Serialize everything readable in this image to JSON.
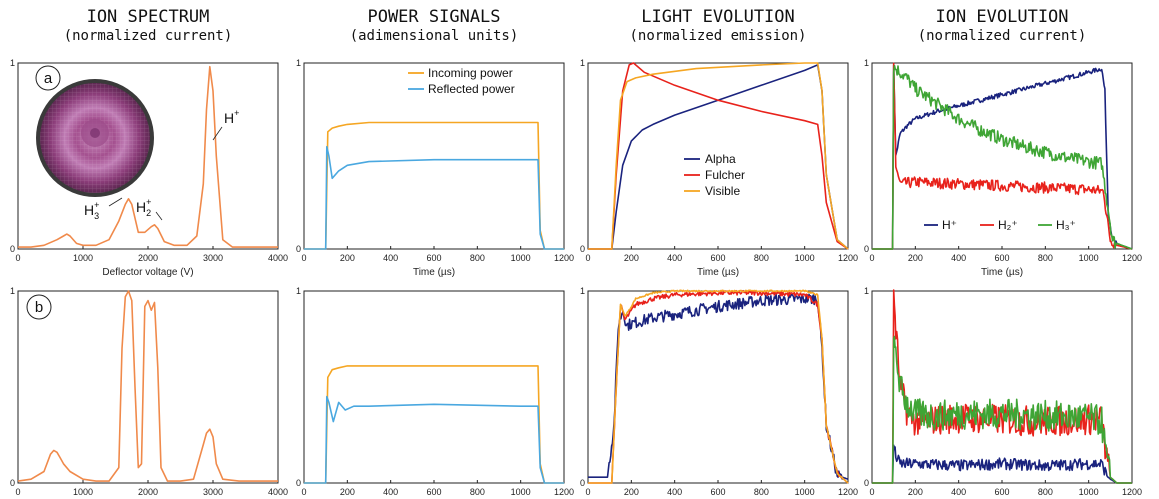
{
  "columns": [
    {
      "title": "ION SPECTRUM",
      "subtitle": "(normalized current)"
    },
    {
      "title": "POWER SIGNALS",
      "subtitle": "(adimensional units)"
    },
    {
      "title": "LIGHT EVOLUTION",
      "subtitle": "(normalized emission)"
    },
    {
      "title": "ION EVOLUTION",
      "subtitle": "(normalized current)"
    }
  ],
  "row_labels": [
    "a",
    "b"
  ],
  "colors": {
    "orange": "#f08a4b",
    "incoming": "#f5a623",
    "reflected": "#4aa8e0",
    "alpha": "#1a237e",
    "fulcher": "#e8221b",
    "visible": "#f5a623",
    "green": "#3fa535"
  },
  "chart_data": [
    {
      "id": "spectrum-a",
      "type": "line",
      "xlabel": "Deflector voltage (V)",
      "xlim": [
        0,
        4000
      ],
      "ylim": [
        0,
        1
      ],
      "xticks": [
        0,
        1000,
        2000,
        3000,
        4000
      ],
      "yticks": [
        0,
        1
      ],
      "annotations": [
        {
          "text": "H",
          "sup": "+",
          "x": 3000
        },
        {
          "text": "H",
          "sub": "3",
          "sup": "+",
          "x": 1700
        },
        {
          "text": "H",
          "sub": "2",
          "sup": "+",
          "x": 2100
        }
      ],
      "series": [
        {
          "color": "#f08a4b",
          "x": [
            0,
            200,
            400,
            600,
            700,
            750,
            800,
            900,
            1000,
            1200,
            1400,
            1550,
            1650,
            1700,
            1750,
            1850,
            1950,
            2050,
            2100,
            2150,
            2250,
            2400,
            2600,
            2750,
            2850,
            2900,
            2950,
            3000,
            3050,
            3150,
            3300,
            3500,
            3800,
            4000
          ],
          "y": [
            0.01,
            0.01,
            0.02,
            0.05,
            0.07,
            0.08,
            0.07,
            0.03,
            0.02,
            0.02,
            0.05,
            0.15,
            0.24,
            0.27,
            0.24,
            0.09,
            0.09,
            0.12,
            0.13,
            0.11,
            0.04,
            0.02,
            0.02,
            0.07,
            0.35,
            0.75,
            0.98,
            0.85,
            0.5,
            0.05,
            0.01,
            0.01,
            0.01,
            0.01
          ]
        }
      ]
    },
    {
      "id": "power-a",
      "type": "line",
      "xlabel": "Time (µs)",
      "xlim": [
        0,
        1200
      ],
      "ylim": [
        0,
        1
      ],
      "xticks": [
        0,
        200,
        400,
        600,
        800,
        1000,
        1200
      ],
      "series": [
        {
          "name": "Incoming power",
          "color": "#f5a623",
          "x": [
            0,
            100,
            110,
            130,
            160,
            200,
            300,
            600,
            1000,
            1080,
            1090,
            1110,
            1200
          ],
          "y": [
            0,
            0,
            0.63,
            0.65,
            0.66,
            0.67,
            0.68,
            0.68,
            0.68,
            0.68,
            0.1,
            0,
            0
          ]
        },
        {
          "name": "Reflected power",
          "color": "#4aa8e0",
          "x": [
            0,
            100,
            105,
            115,
            130,
            160,
            200,
            300,
            600,
            1000,
            1080,
            1090,
            1110,
            1200
          ],
          "y": [
            0,
            0,
            0.55,
            0.5,
            0.38,
            0.42,
            0.45,
            0.47,
            0.48,
            0.48,
            0.48,
            0.08,
            0,
            0
          ]
        }
      ]
    },
    {
      "id": "light-a",
      "type": "line",
      "xlabel": "Time (µs)",
      "xlim": [
        0,
        1200
      ],
      "ylim": [
        0,
        1
      ],
      "xticks": [
        0,
        200,
        400,
        600,
        800,
        1000,
        1200
      ],
      "series": [
        {
          "name": "Alpha",
          "color": "#1a237e",
          "x": [
            0,
            110,
            130,
            160,
            200,
            250,
            300,
            400,
            600,
            800,
            1000,
            1060,
            1080,
            1100,
            1150,
            1200
          ],
          "y": [
            0,
            0,
            0.2,
            0.45,
            0.58,
            0.64,
            0.67,
            0.72,
            0.8,
            0.88,
            0.96,
            0.99,
            0.85,
            0.4,
            0.05,
            0
          ]
        },
        {
          "name": "Fulcher",
          "color": "#e8221b",
          "x": [
            0,
            110,
            130,
            160,
            190,
            210,
            260,
            400,
            600,
            800,
            1000,
            1060,
            1080,
            1100,
            1150,
            1200
          ],
          "y": [
            0,
            0,
            0.4,
            0.85,
            0.99,
            1.0,
            0.95,
            0.88,
            0.8,
            0.74,
            0.69,
            0.67,
            0.5,
            0.25,
            0.04,
            0
          ]
        },
        {
          "name": "Visible",
          "color": "#f5a623",
          "x": [
            0,
            110,
            130,
            150,
            180,
            220,
            300,
            500,
            800,
            1000,
            1060,
            1080,
            1100,
            1150,
            1200
          ],
          "y": [
            0,
            0,
            0.45,
            0.8,
            0.9,
            0.92,
            0.94,
            0.97,
            0.99,
            1.0,
            1.0,
            0.85,
            0.4,
            0.05,
            0
          ]
        }
      ]
    },
    {
      "id": "ion-a",
      "type": "line",
      "xlabel": "Time (µs)",
      "xlim": [
        0,
        1200
      ],
      "ylim": [
        0,
        1
      ],
      "xticks": [
        0,
        200,
        400,
        600,
        800,
        1000,
        1200
      ],
      "series": [
        {
          "name": "H⁺",
          "color": "#1a237e",
          "x": [
            0,
            95,
            100,
            110,
            130,
            160,
            200,
            300,
            400,
            500,
            600,
            700,
            800,
            900,
            1000,
            1060,
            1075,
            1090,
            1110,
            1130,
            1150,
            1200
          ],
          "y": [
            0,
            0,
            0.98,
            0.5,
            0.62,
            0.66,
            0.7,
            0.74,
            0.77,
            0.8,
            0.83,
            0.86,
            0.89,
            0.92,
            0.95,
            0.97,
            0.85,
            0.2,
            0.05,
            0.03,
            0.02,
            0
          ]
        },
        {
          "name": "H₂⁺",
          "color": "#e8221b",
          "x": [
            0,
            95,
            100,
            110,
            130,
            200,
            400,
            600,
            800,
            1000,
            1070,
            1080,
            1100,
            1130,
            1200
          ],
          "y": [
            0,
            0,
            0.98,
            0.45,
            0.35,
            0.36,
            0.35,
            0.34,
            0.33,
            0.32,
            0.31,
            0.2,
            0.05,
            0.02,
            0
          ]
        },
        {
          "name": "H₃⁺",
          "color": "#3fa535",
          "x": [
            0,
            95,
            100,
            120,
            160,
            200,
            300,
            400,
            500,
            600,
            700,
            800,
            900,
            1000,
            1060,
            1080,
            1110,
            1130,
            1200
          ],
          "y": [
            0,
            0,
            0.98,
            0.96,
            0.92,
            0.86,
            0.78,
            0.7,
            0.64,
            0.59,
            0.55,
            0.52,
            0.49,
            0.47,
            0.46,
            0.3,
            0.05,
            0.03,
            0
          ]
        }
      ]
    },
    {
      "id": "spectrum-b",
      "type": "line",
      "xlim": [
        0,
        4000
      ],
      "ylim": [
        0,
        1
      ],
      "xticks": [
        0,
        1000,
        2000,
        3000,
        4000
      ],
      "yticks": [
        0,
        1
      ],
      "series": [
        {
          "color": "#f08a4b",
          "x": [
            0,
            200,
            400,
            500,
            550,
            600,
            650,
            700,
            800,
            1000,
            1200,
            1400,
            1550,
            1600,
            1650,
            1700,
            1750,
            1800,
            1850,
            1900,
            1950,
            2000,
            2050,
            2100,
            2150,
            2200,
            2300,
            2500,
            2700,
            2850,
            2900,
            2950,
            3000,
            3050,
            3150,
            3400,
            3800,
            4000
          ],
          "y": [
            0.01,
            0.02,
            0.06,
            0.15,
            0.17,
            0.16,
            0.13,
            0.1,
            0.06,
            0.02,
            0.01,
            0.01,
            0.08,
            0.7,
            0.97,
            1.0,
            0.95,
            0.5,
            0.08,
            0.1,
            0.92,
            0.95,
            0.9,
            0.94,
            0.6,
            0.08,
            0.01,
            0.01,
            0.02,
            0.2,
            0.26,
            0.28,
            0.24,
            0.1,
            0.02,
            0.01,
            0.01,
            0.01
          ]
        }
      ]
    },
    {
      "id": "power-b",
      "type": "line",
      "xlim": [
        0,
        1200
      ],
      "ylim": [
        0,
        1
      ],
      "xticks": [
        0,
        200,
        400,
        600,
        800,
        1000,
        1200
      ],
      "series": [
        {
          "color": "#f5a623",
          "x": [
            0,
            100,
            110,
            130,
            160,
            200,
            300,
            600,
            1000,
            1080,
            1090,
            1110,
            1200
          ],
          "y": [
            0,
            0,
            0.55,
            0.59,
            0.6,
            0.61,
            0.61,
            0.61,
            0.61,
            0.61,
            0.1,
            0,
            0
          ]
        },
        {
          "color": "#4aa8e0",
          "x": [
            0,
            100,
            105,
            115,
            135,
            160,
            190,
            230,
            300,
            600,
            1000,
            1080,
            1090,
            1110,
            1200
          ],
          "y": [
            0,
            0,
            0.45,
            0.42,
            0.32,
            0.42,
            0.38,
            0.4,
            0.4,
            0.41,
            0.4,
            0.4,
            0.08,
            0,
            0
          ]
        }
      ]
    },
    {
      "id": "light-b",
      "type": "line",
      "xlim": [
        0,
        1200
      ],
      "ylim": [
        0,
        1
      ],
      "xticks": [
        0,
        200,
        400,
        600,
        800,
        1000,
        1200
      ],
      "series": [
        {
          "color": "#1a237e",
          "x": [
            0,
            90,
            120,
            140,
            160,
            180,
            200,
            300,
            400,
            600,
            800,
            1000,
            1060,
            1080,
            1100,
            1150,
            1200
          ],
          "y": [
            0.03,
            0.03,
            0.3,
            0.82,
            0.9,
            0.82,
            0.83,
            0.86,
            0.88,
            0.92,
            0.95,
            0.96,
            0.96,
            0.7,
            0.3,
            0.04,
            0.02
          ]
        },
        {
          "color": "#e8221b",
          "x": [
            0,
            110,
            130,
            150,
            170,
            190,
            220,
            300,
            400,
            600,
            800,
            1000,
            1060,
            1080,
            1100,
            1150,
            1200
          ],
          "y": [
            0,
            0,
            0.5,
            0.93,
            0.85,
            0.88,
            0.93,
            0.96,
            0.98,
            0.99,
            0.99,
            0.98,
            0.93,
            0.75,
            0.3,
            0.05,
            0
          ]
        },
        {
          "color": "#f5a623",
          "x": [
            0,
            110,
            130,
            150,
            170,
            190,
            220,
            300,
            400,
            600,
            800,
            1000,
            1060,
            1080,
            1100,
            1150,
            1200
          ],
          "y": [
            0,
            0,
            0.5,
            0.93,
            0.87,
            0.9,
            0.96,
            0.99,
            1.0,
            1.0,
            1.0,
            1.0,
            0.98,
            0.75,
            0.3,
            0.05,
            0
          ]
        }
      ]
    },
    {
      "id": "ion-b",
      "type": "line",
      "xlim": [
        0,
        1200
      ],
      "ylim": [
        0,
        1
      ],
      "xticks": [
        0,
        200,
        400,
        600,
        800,
        1000,
        1200
      ],
      "series": [
        {
          "color": "#1a237e",
          "x": [
            0,
            95,
            100,
            110,
            130,
            200,
            400,
            600,
            800,
            1000,
            1060,
            1080,
            1100,
            1130,
            1200
          ],
          "y": [
            0,
            0,
            0.2,
            0.14,
            0.1,
            0.1,
            0.09,
            0.1,
            0.09,
            0.1,
            0.1,
            0.05,
            0.02,
            0,
            0
          ]
        },
        {
          "color": "#e8221b",
          "x": [
            0,
            95,
            100,
            110,
            130,
            160,
            200,
            300,
            400,
            600,
            800,
            1000,
            1060,
            1080,
            1100,
            1130,
            1200
          ],
          "y": [
            0,
            0,
            1.0,
            0.8,
            0.5,
            0.38,
            0.32,
            0.33,
            0.34,
            0.33,
            0.32,
            0.33,
            0.33,
            0.15,
            0.03,
            0,
            0
          ]
        },
        {
          "color": "#3fa535",
          "x": [
            0,
            95,
            100,
            110,
            130,
            160,
            200,
            300,
            400,
            600,
            800,
            1000,
            1060,
            1080,
            1100,
            1130,
            1200
          ],
          "y": [
            0,
            0,
            0.7,
            0.68,
            0.5,
            0.42,
            0.36,
            0.35,
            0.36,
            0.36,
            0.35,
            0.34,
            0.32,
            0.15,
            0.03,
            0,
            0
          ]
        }
      ]
    }
  ]
}
